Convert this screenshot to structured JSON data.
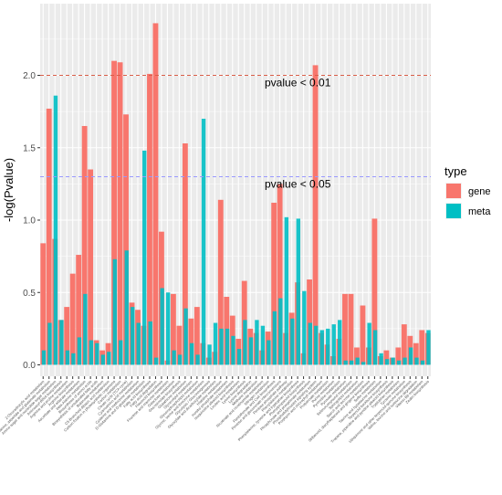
{
  "chart_data": {
    "type": "bar",
    "ylabel": "-log(Pvalue)",
    "ylim": [
      0,
      2.4
    ],
    "y_ticks": [
      "0.0",
      "0.5",
      "1.0",
      "1.5",
      "2.0"
    ],
    "y_tick_values": [
      0,
      0.5,
      1.0,
      1.5,
      2.0
    ],
    "grid": true,
    "legend": {
      "title": "type",
      "placement": "right",
      "items": [
        {
          "name": "gene",
          "color": "#F8766D"
        },
        {
          "name": "meta",
          "color": "#00BFC4"
        }
      ]
    },
    "thresholds": [
      {
        "value": 2.0,
        "label": "pvalue < 0.01",
        "color": "#D95F4A",
        "line": "dashed"
      },
      {
        "value": 1.3,
        "label": "pvalue < 0.05",
        "color": "#9999FF",
        "line": "dashed"
      }
    ],
    "categories": [
      "2-Oxocarboxylic acid metabolism",
      "Alanine, aspartate and glutamate metabolism",
      "Amino sugar and nucleotide sugar metabolism",
      "Aminoacyl-tRNA biosynthesis",
      "Arginine and proline metabolism",
      "Arginine biosynthesis",
      "Ascorbate and aldarate metabolism",
      "beta-Alanine metabolism",
      "Biosynthesis of amino acids",
      "Biosynthesis of unsaturated fatty acids",
      "Butanoate metabolism",
      "C5-Branched dibasic acid metabolism",
      "Carbon fixation in photosynthetic organisms",
      "Carbon metabolism",
      "Citrate cycle (TCA cycle)",
      "Cyanoamino acid metabolism",
      "Cysteine and methionine metabolism",
      "D-Glutamine and D-glutamate metabolism",
      "Fatty acid biosynthesis",
      "Fatty acid degradation",
      "Flavonoid biosynthesis",
      "Fructose and mannose metabolism",
      "Galactose metabolism",
      "Glucosinolate biosynthesis",
      "Glutathione metabolism",
      "Glycerolipid metabolism",
      "Glycerophospholipid metabolism",
      "Glycine, serine and threonine metabolism",
      "Glycolysis / Gluconeogenesis",
      "Glyoxylate and dicarboxylate metabolism",
      "Histidine metabolism",
      "Inositol phosphate metabolism",
      "Isoquinoline alkaloid biosynthesis",
      "Linoleic acid metabolism",
      "Lysine biosynthesis",
      "Lysine degradation",
      "Methane metabolism",
      "Nicotinate and nicotinamide metabolism",
      "Nitrogen metabolism",
      "Pantothenate and CoA biosynthesis",
      "Pentose and glucuronate interconversions",
      "Pentose phosphate pathway",
      "Phenylalanine metabolism",
      "Phenylalanine, tyrosine and tryptophan biosynthesis",
      "Phenylpropanoid biosynthesis",
      "Phosphonate and phosphinate metabolism",
      "Phosphatidylinositol signaling system",
      "Porphyrin and chlorophyll metabolism",
      "Propanoate metabolism",
      "Purine metabolism",
      "Pyrimidine metabolism",
      "Pyruvate metabolism",
      "Selenocompound metabolism",
      "Sphingolipid metabolism",
      "Starch and sucrose metabolism",
      "Stilbenoid, diarylheptanoid and gingerol biosynthesis",
      "Sulfur metabolism",
      "Taurine and hypotaurine metabolism",
      "Terpenoid backbone biosynthesis",
      "Tropane, piperidine and pyridine alkaloid biosynthesis",
      "Tryptophan metabolism",
      "Tyrosine metabolism",
      "Ubiquinone and other terpenoid-quinone biosynthesis",
      "Valine, leucine and isoleucine degradation",
      "Vitamin B6 metabolism",
      "Zeatin biosynthesis"
    ],
    "series": [
      {
        "name": "gene",
        "values": [
          0.84,
          1.77,
          0.87,
          0.31,
          0.4,
          0.63,
          0.76,
          1.65,
          1.35,
          0.17,
          0.1,
          0.15,
          2.1,
          2.09,
          1.73,
          0.43,
          0.38,
          0.27,
          2.01,
          2.36,
          0.92,
          0.03,
          0.49,
          0.27,
          1.53,
          0.32,
          0.4,
          0.15,
          0.05,
          0.09,
          1.14,
          0.47,
          0.34,
          0.18,
          0.58,
          0.25,
          0.22,
          0.1,
          0.23,
          1.12,
          1.25,
          0.22,
          0.36,
          0.57,
          0.08,
          0.59,
          2.07,
          0.22,
          0.14,
          0.06,
          0.18,
          0.49,
          0.49,
          0.12,
          0.41,
          0.12,
          1.01,
          0.06,
          0.1,
          0.05,
          0.12,
          0.28,
          0.2,
          0.15,
          0.24,
          0.22
        ]
      },
      {
        "name": "meta",
        "values": [
          0.1,
          0.29,
          1.86,
          0.31,
          0.1,
          0.08,
          0.19,
          0.49,
          0.17,
          0.15,
          0.07,
          0.09,
          0.73,
          0.17,
          0.79,
          0.4,
          0.29,
          1.48,
          0.3,
          0.05,
          0.53,
          0.5,
          0.1,
          0.07,
          0.39,
          0.15,
          0.07,
          1.7,
          0.14,
          0.29,
          0.25,
          0.25,
          0.2,
          0.11,
          0.31,
          0.19,
          0.31,
          0.27,
          0.17,
          0.37,
          0.46,
          1.02,
          0.32,
          1.01,
          0.51,
          0.29,
          0.27,
          0.24,
          0.25,
          0.28,
          0.31,
          0.03,
          0.03,
          0.05,
          0.02,
          0.29,
          0.24,
          0.08,
          0.04,
          0.05,
          0.03,
          0.05,
          0.12,
          0.05,
          0.03,
          0.24
        ]
      }
    ]
  }
}
